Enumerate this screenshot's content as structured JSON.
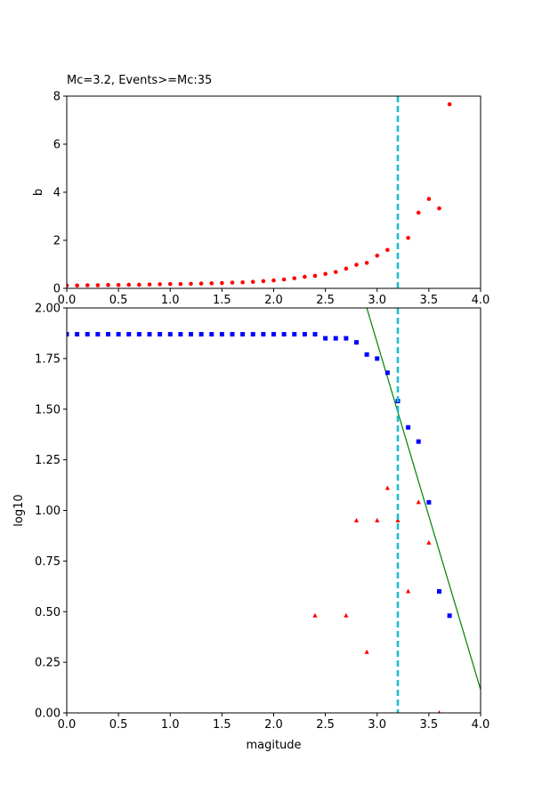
{
  "chart_data": [
    {
      "type": "scatter",
      "title": "Mc=3.2, Events>=Mc:35",
      "xlabel": "",
      "ylabel": "b",
      "xlim": [
        0.0,
        4.0
      ],
      "ylim": [
        0,
        8
      ],
      "xticks": [
        "0.0",
        "0.5",
        "1.0",
        "1.5",
        "2.0",
        "2.5",
        "3.0",
        "3.5",
        "4.0"
      ],
      "yticks": [
        "0",
        "2",
        "4",
        "6",
        "8"
      ],
      "grid": false,
      "vline": {
        "x": 3.2,
        "color": "#17becf",
        "style": "dashed"
      },
      "series": [
        {
          "marker": "circle",
          "color": "#ff0000",
          "x": [
            0.0,
            0.1,
            0.2,
            0.3,
            0.4,
            0.5,
            0.6,
            0.7,
            0.8,
            0.9,
            1.0,
            1.1,
            1.2,
            1.3,
            1.4,
            1.5,
            1.6,
            1.7,
            1.8,
            1.9,
            2.0,
            2.1,
            2.2,
            2.3,
            2.4,
            2.5,
            2.6,
            2.7,
            2.8,
            2.9,
            3.0,
            3.1,
            3.3,
            3.4,
            3.5,
            3.6,
            3.7
          ],
          "y": [
            0.12,
            0.12,
            0.13,
            0.13,
            0.14,
            0.14,
            0.15,
            0.15,
            0.16,
            0.17,
            0.18,
            0.18,
            0.19,
            0.2,
            0.21,
            0.22,
            0.24,
            0.25,
            0.27,
            0.3,
            0.33,
            0.37,
            0.42,
            0.48,
            0.52,
            0.6,
            0.68,
            0.82,
            0.98,
            1.06,
            1.36,
            1.6,
            2.1,
            3.15,
            3.72,
            3.33,
            7.66
          ]
        }
      ]
    },
    {
      "type": "scatter",
      "title": "",
      "xlabel": "magitude",
      "ylabel": "log10",
      "xlim": [
        0.0,
        4.0
      ],
      "ylim": [
        0.0,
        2.0
      ],
      "xticks": [
        "0.0",
        "0.5",
        "1.0",
        "1.5",
        "2.0",
        "2.5",
        "3.0",
        "3.5",
        "4.0"
      ],
      "yticks": [
        "0.00",
        "0.25",
        "0.50",
        "0.75",
        "1.00",
        "1.25",
        "1.50",
        "1.75",
        "2.00"
      ],
      "grid": false,
      "vline": {
        "x": 3.2,
        "color": "#17becf",
        "style": "dashed"
      },
      "fit_line": {
        "color": "#008000",
        "x": [
          2.9,
          4.0
        ],
        "y": [
          2.0,
          0.115
        ]
      },
      "series": [
        {
          "marker": "square",
          "color": "#0000ff",
          "x": [
            0.0,
            0.1,
            0.2,
            0.3,
            0.4,
            0.5,
            0.6,
            0.7,
            0.8,
            0.9,
            1.0,
            1.1,
            1.2,
            1.3,
            1.4,
            1.5,
            1.6,
            1.7,
            1.8,
            1.9,
            2.0,
            2.1,
            2.2,
            2.3,
            2.4,
            2.5,
            2.6,
            2.7,
            2.8,
            2.9,
            3.0,
            3.1,
            3.2,
            3.3,
            3.4,
            3.5,
            3.6,
            3.7
          ],
          "y": [
            1.87,
            1.87,
            1.87,
            1.87,
            1.87,
            1.87,
            1.87,
            1.87,
            1.87,
            1.87,
            1.87,
            1.87,
            1.87,
            1.87,
            1.87,
            1.87,
            1.87,
            1.87,
            1.87,
            1.87,
            1.87,
            1.87,
            1.87,
            1.87,
            1.87,
            1.85,
            1.85,
            1.85,
            1.83,
            1.77,
            1.75,
            1.68,
            1.54,
            1.41,
            1.34,
            1.04,
            0.6,
            0.48
          ]
        },
        {
          "marker": "triangle",
          "color": "#ff0000",
          "x": [
            2.4,
            2.7,
            2.8,
            2.9,
            3.0,
            3.1,
            3.2,
            3.3,
            3.4,
            3.5,
            3.6
          ],
          "y": [
            0.48,
            0.48,
            0.95,
            0.3,
            0.95,
            1.11,
            0.95,
            0.6,
            1.04,
            0.84,
            0.0
          ]
        }
      ]
    }
  ]
}
